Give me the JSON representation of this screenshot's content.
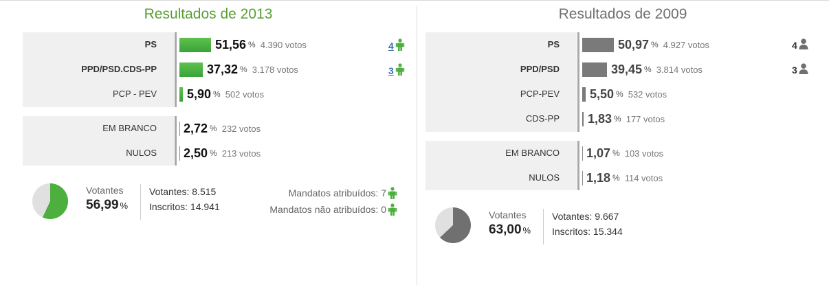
{
  "r2013": {
    "title": "Resultados de 2013",
    "parties": [
      {
        "name": "PS",
        "pct": "51,56",
        "votes": "4.390 votos",
        "seats": "4",
        "bold": true,
        "share": 51.56
      },
      {
        "name": "PPD/PSD.CDS-PP",
        "pct": "37,32",
        "votes": "3.178 votos",
        "seats": "3",
        "bold": true,
        "share": 37.32
      },
      {
        "name": "PCP - PEV",
        "pct": "5,90",
        "votes": "502 votos",
        "seats": "",
        "bold": false,
        "share": 5.9
      }
    ],
    "other": [
      {
        "name": "EM BRANCO",
        "pct": "2,72",
        "votes": "232 votos"
      },
      {
        "name": "NULOS",
        "pct": "2,50",
        "votes": "213 votos"
      }
    ],
    "turnout_label": "Votantes",
    "turnout_pct": "56,99",
    "turnout_share": 56.99,
    "votantes": "Votantes: 8.515",
    "inscritos": "Inscritos: 14.941",
    "mandatos_atribuidos": "Mandatos atribuídos: 7",
    "mandatos_nao_atribuidos": "Mandatos não atribuídos: 0"
  },
  "r2009": {
    "title": "Resultados de 2009",
    "parties": [
      {
        "name": "PS",
        "pct": "50,97",
        "votes": "4.927 votos",
        "seats": "4",
        "bold": true,
        "share": 50.97
      },
      {
        "name": "PPD/PSD",
        "pct": "39,45",
        "votes": "3.814 votos",
        "seats": "3",
        "bold": true,
        "share": 39.45
      },
      {
        "name": "PCP-PEV",
        "pct": "5,50",
        "votes": "532 votos",
        "seats": "",
        "bold": false,
        "share": 5.5
      },
      {
        "name": "CDS-PP",
        "pct": "1,83",
        "votes": "177 votos",
        "seats": "",
        "bold": false,
        "share": 1.83
      }
    ],
    "other": [
      {
        "name": "EM BRANCO",
        "pct": "1,07",
        "votes": "103 votos"
      },
      {
        "name": "NULOS",
        "pct": "1,18",
        "votes": "114 votos"
      }
    ],
    "turnout_label": "Votantes",
    "turnout_pct": "63,00",
    "turnout_share": 63.0,
    "votantes": "Votantes: 9.667",
    "inscritos": "Inscritos: 15.344"
  },
  "pct_sign": "%",
  "colors": {
    "green": "#4caf3e",
    "grey": "#707070",
    "pie_bg": "#e0e0e0"
  }
}
